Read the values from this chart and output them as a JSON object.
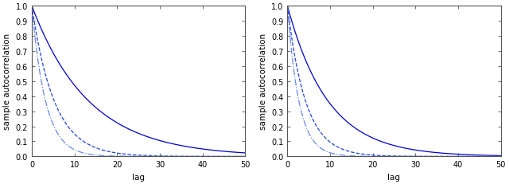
{
  "panel1": {
    "curves": [
      {
        "rate": 0.075,
        "style": "solid",
        "color": "#0000cc",
        "lw": 0.9
      },
      {
        "rate": 0.19,
        "style": "dashed",
        "color": "#2244dd",
        "lw": 0.9
      },
      {
        "rate": 0.31,
        "style": "dashdot",
        "color": "#6688ee",
        "lw": 0.9
      }
    ],
    "xlim": [
      0,
      50
    ],
    "ylim": [
      0,
      1
    ],
    "xticks": [
      0,
      10,
      20,
      30,
      40,
      50
    ],
    "yticks": [
      0.0,
      0.1,
      0.2,
      0.3,
      0.4,
      0.5,
      0.6,
      0.7,
      0.8,
      0.9,
      1.0
    ],
    "xlabel": "lag",
    "ylabel": "sample autocorrelation"
  },
  "panel2": {
    "curves": [
      {
        "rate": 0.105,
        "style": "solid",
        "color": "#0000cc",
        "lw": 0.9
      },
      {
        "rate": 0.235,
        "style": "dashed",
        "color": "#2244dd",
        "lw": 0.9
      },
      {
        "rate": 0.37,
        "style": "dashdot",
        "color": "#6688ee",
        "lw": 0.9
      }
    ],
    "xlim": [
      0,
      50
    ],
    "ylim": [
      0,
      1
    ],
    "xticks": [
      0,
      10,
      20,
      30,
      40,
      50
    ],
    "yticks": [
      0.0,
      0.1,
      0.2,
      0.3,
      0.4,
      0.5,
      0.6,
      0.7,
      0.8,
      0.9,
      1.0
    ],
    "xlabel": "lag",
    "ylabel": "sample autocorrelation"
  },
  "bg_color": "#ffffff",
  "spine_color": "#555555",
  "tick_fontsize": 7,
  "label_fontsize": 7.5
}
